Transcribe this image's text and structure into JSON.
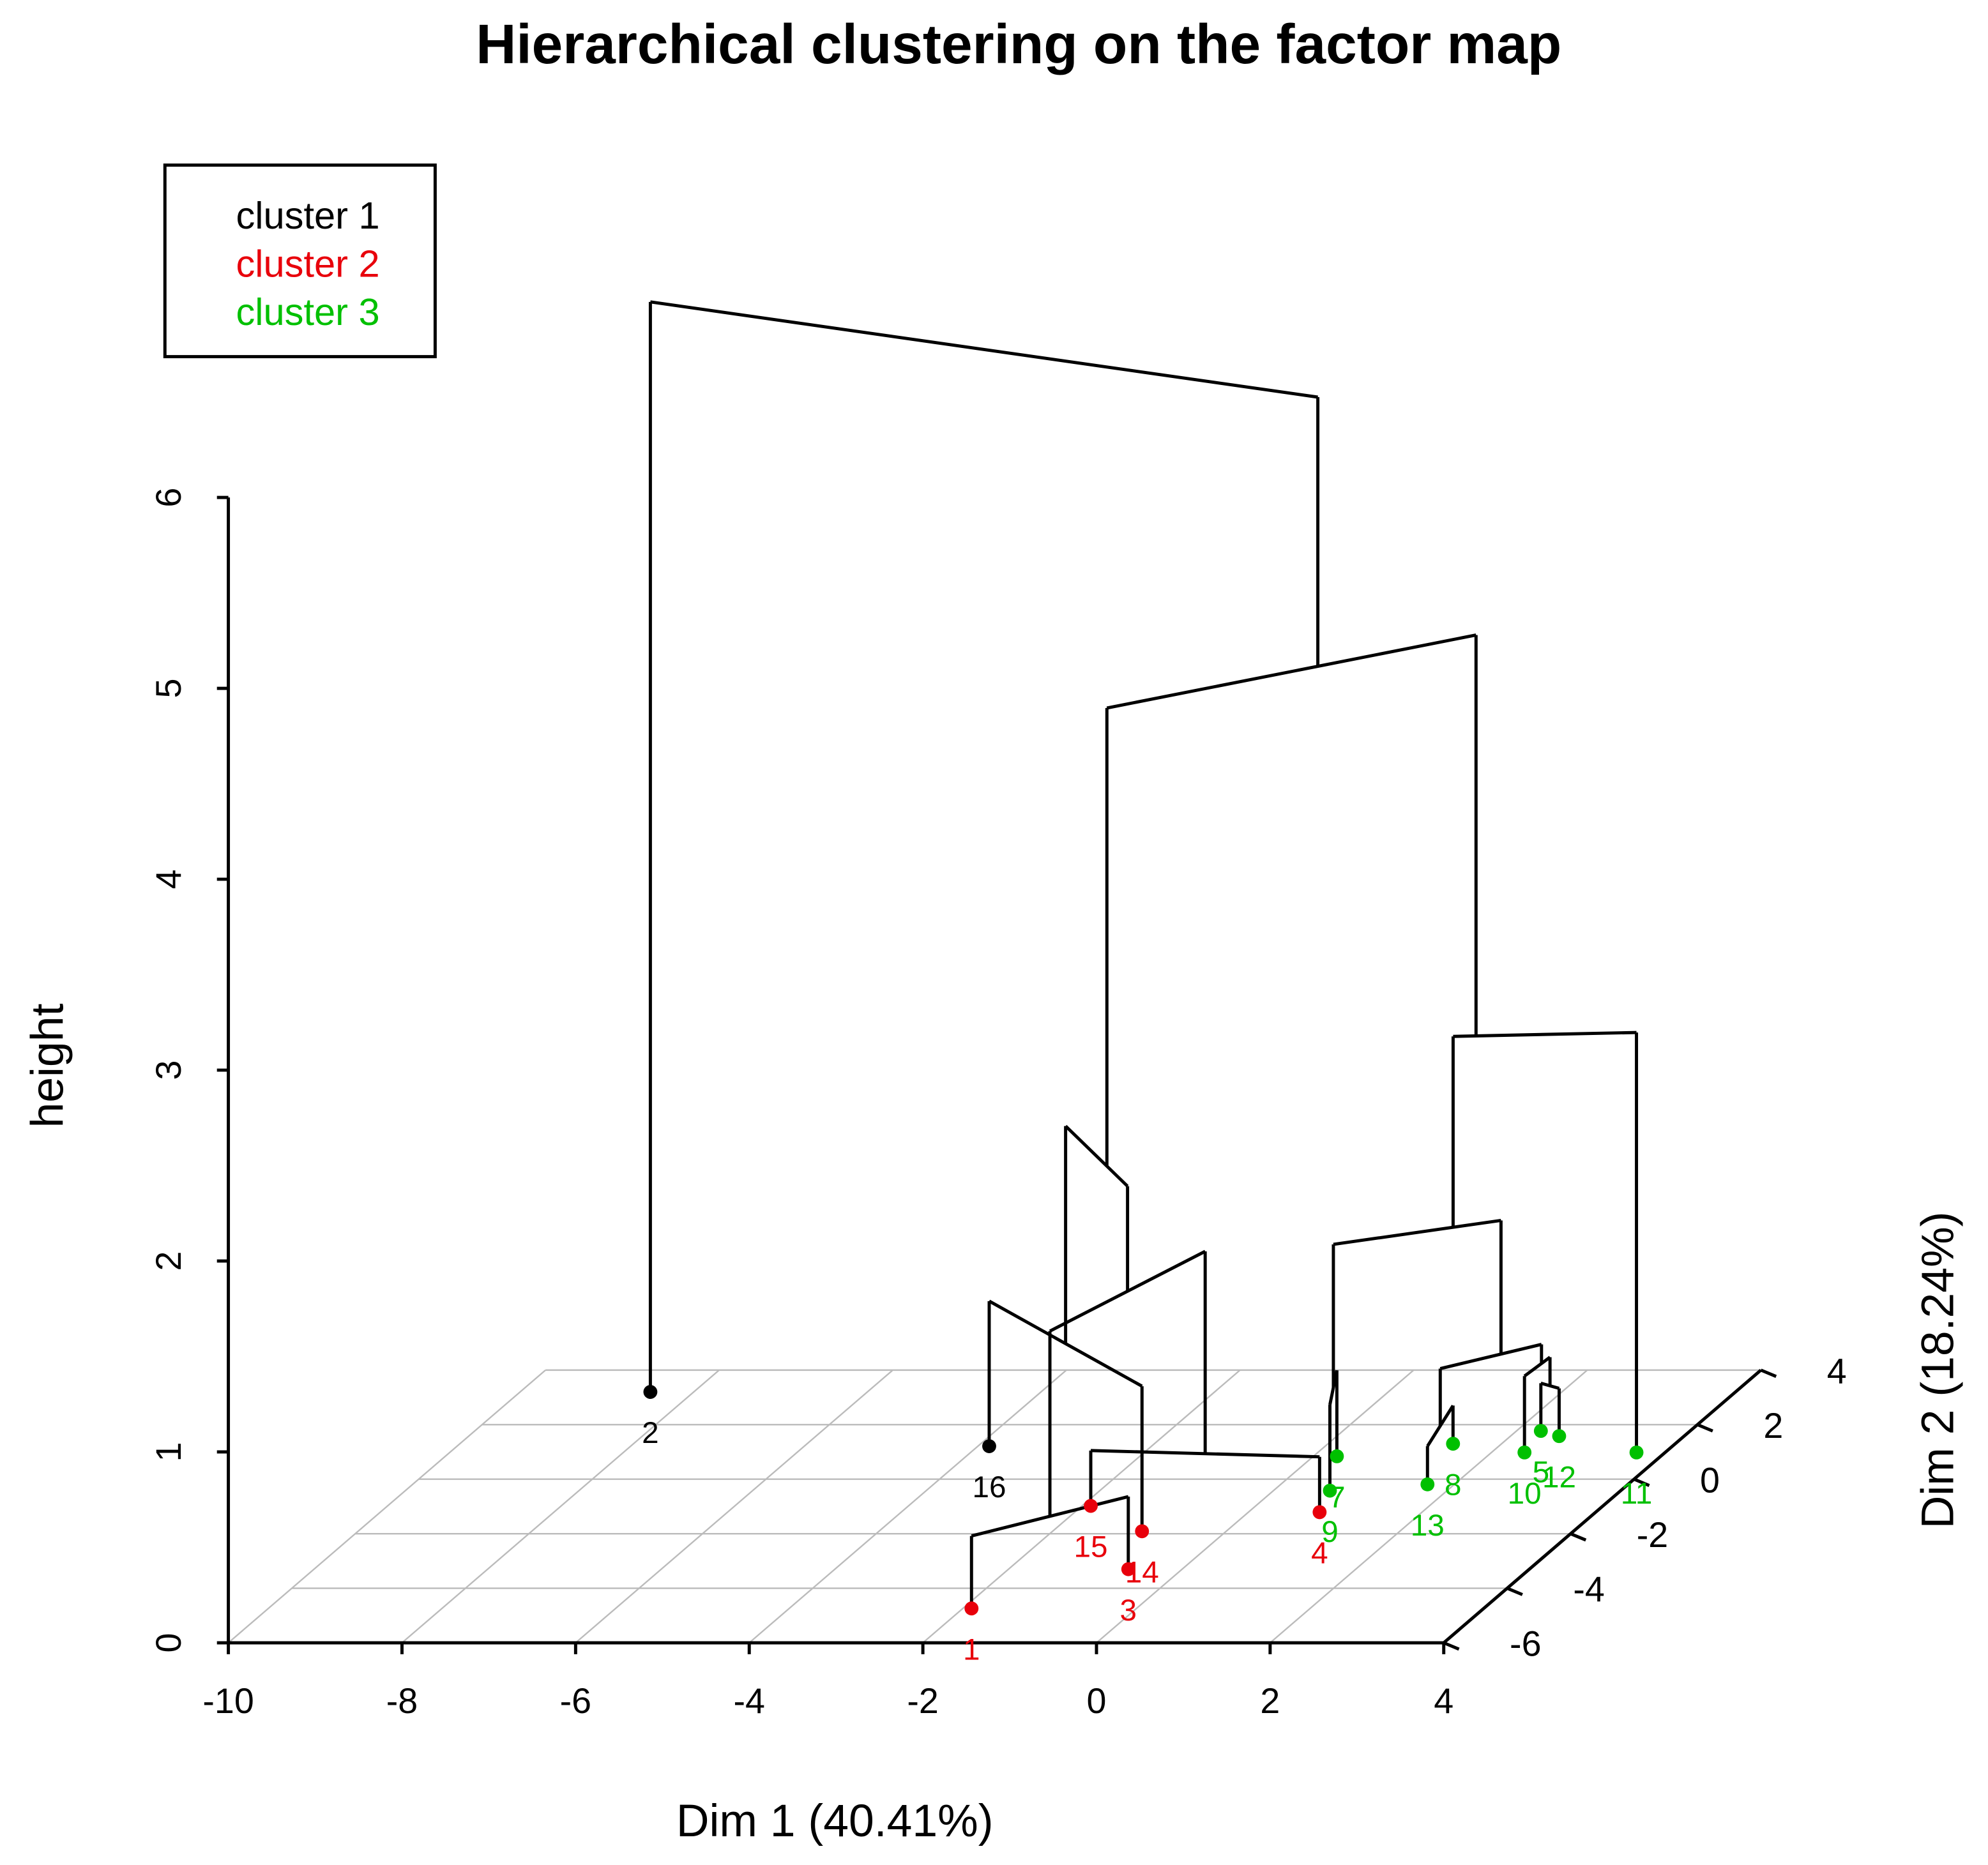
{
  "chart_data": {
    "type": "dendrogram3d",
    "title": "Hierarchical clustering on the factor map",
    "xlabel": "Dim 1 (40.41%)",
    "ylabel": "Dim 2 (18.24%)",
    "zlabel": "height",
    "xlim": [
      -10,
      4
    ],
    "xticks": [
      -10,
      -8,
      -6,
      -4,
      -2,
      0,
      2,
      4
    ],
    "ylim": [
      -6,
      4
    ],
    "yticks": [
      -6,
      -4,
      -2,
      0,
      2,
      4
    ],
    "zlim": [
      0,
      6
    ],
    "zticks": [
      0,
      1,
      2,
      3,
      4,
      5,
      6
    ],
    "grid": true,
    "legend_position": "top-left",
    "series": [
      {
        "name": "cluster 1",
        "color": "#000000"
      },
      {
        "name": "cluster 2",
        "color": "#e8000b"
      },
      {
        "name": "cluster 3",
        "color": "#00c000"
      }
    ],
    "points": [
      {
        "label": "1",
        "dim1": -1.9,
        "dim2": -4.74,
        "cluster": 1
      },
      {
        "label": "2",
        "dim1": -8.5,
        "dim2": 3.2,
        "cluster": 0
      },
      {
        "label": "3",
        "dim1": -0.62,
        "dim2": -3.3,
        "cluster": 1
      },
      {
        "label": "4",
        "dim1": 0.82,
        "dim2": -1.21,
        "cluster": 1
      },
      {
        "label": "5",
        "dim1": 2.28,
        "dim2": 1.77,
        "cluster": 2
      },
      {
        "label": "7",
        "dim1": 0.27,
        "dim2": 0.84,
        "cluster": 2
      },
      {
        "label": "8",
        "dim1": 1.44,
        "dim2": 1.3,
        "cluster": 2
      },
      {
        "label": "9",
        "dim1": 0.65,
        "dim2": -0.42,
        "cluster": 2
      },
      {
        "label": "10",
        "dim1": 2.38,
        "dim2": 0.98,
        "cluster": 2
      },
      {
        "label": "11",
        "dim1": 3.67,
        "dim2": 0.98,
        "cluster": 2
      },
      {
        "label": "12",
        "dim1": 2.56,
        "dim2": 1.58,
        "cluster": 2
      },
      {
        "label": "13",
        "dim1": 1.69,
        "dim2": -0.19,
        "cluster": 2
      },
      {
        "label": "14",
        "dim1": -0.97,
        "dim2": -1.91,
        "cluster": 1
      },
      {
        "label": "15",
        "dim1": -1.9,
        "dim2": -0.98,
        "cluster": 1
      },
      {
        "label": "16",
        "dim1": -3.87,
        "dim2": 1.21,
        "cluster": 0
      }
    ],
    "merges": [
      {
        "children": [
          0,
          2
        ],
        "height": 0.38
      },
      {
        "children": [
          13,
          3
        ],
        "height": 0.29
      },
      {
        "children": [
          14,
          12
        ],
        "height": 0.76
      },
      {
        "children": [
          15,
          16
        ],
        "height": 1.35
      },
      {
        "children": [
          18,
          17
        ],
        "height": 1.9
      },
      {
        "children": [
          4,
          10
        ],
        "height": 0.25
      },
      {
        "children": [
          8,
          20
        ],
        "height": 0.4
      },
      {
        "children": [
          6,
          11
        ],
        "height": 0.2
      },
      {
        "children": [
          22,
          21
        ],
        "height": 0.5
      },
      {
        "children": [
          5,
          7
        ],
        "height": 0.45
      },
      {
        "children": [
          24,
          23
        ],
        "height": 1.2
      },
      {
        "children": [
          25,
          9
        ],
        "height": 2.2
      },
      {
        "children": [
          19,
          26
        ],
        "height": 4.3
      },
      {
        "children": [
          1,
          27
        ],
        "height": 5.71
      }
    ]
  }
}
